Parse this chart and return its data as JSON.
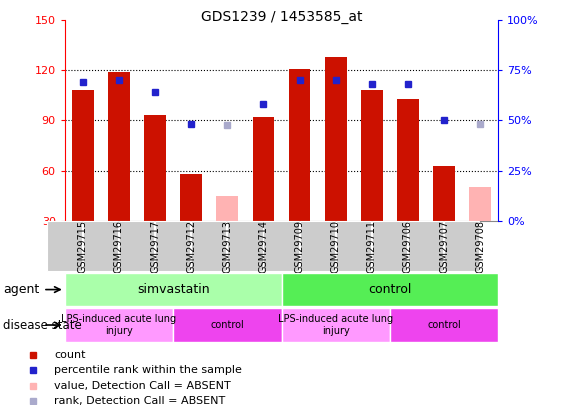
{
  "title": "GDS1239 / 1453585_at",
  "samples": [
    "GSM29715",
    "GSM29716",
    "GSM29717",
    "GSM29712",
    "GSM29713",
    "GSM29714",
    "GSM29709",
    "GSM29710",
    "GSM29711",
    "GSM29706",
    "GSM29707",
    "GSM29708"
  ],
  "count_values": [
    108,
    119,
    93,
    58,
    null,
    92,
    121,
    128,
    108,
    103,
    63,
    null
  ],
  "absent_value_values": [
    null,
    null,
    null,
    null,
    45,
    null,
    null,
    null,
    null,
    null,
    null,
    50
  ],
  "percentile_left_values": [
    113,
    114,
    107,
    88,
    null,
    100,
    114,
    114,
    112,
    112,
    90,
    null
  ],
  "absent_rank_left_values": [
    null,
    null,
    null,
    null,
    87,
    null,
    null,
    null,
    null,
    null,
    null,
    88
  ],
  "ylim_left": [
    30,
    150
  ],
  "ylim_right": [
    0,
    100
  ],
  "yticks_left": [
    30,
    60,
    90,
    120,
    150
  ],
  "yticks_right": [
    0,
    25,
    50,
    75,
    100
  ],
  "ytick_labels_right": [
    "0%",
    "25%",
    "50%",
    "75%",
    "100%"
  ],
  "bar_color_red": "#CC1100",
  "bar_color_pink": "#FFB3B3",
  "dot_color_blue": "#2222CC",
  "dot_color_lavender": "#AAAACC",
  "agent_groups": [
    {
      "label": "simvastatin",
      "start": 0,
      "end": 6,
      "color": "#AAFFAA"
    },
    {
      "label": "control",
      "start": 6,
      "end": 12,
      "color": "#55EE55"
    }
  ],
  "disease_groups": [
    {
      "label": "LPS-induced acute lung\ninjury",
      "start": 0,
      "end": 3,
      "color": "#FF99FF"
    },
    {
      "label": "control",
      "start": 3,
      "end": 6,
      "color": "#EE44EE"
    },
    {
      "label": "LPS-induced acute lung\ninjury",
      "start": 6,
      "end": 9,
      "color": "#FF99FF"
    },
    {
      "label": "control",
      "start": 9,
      "end": 12,
      "color": "#EE44EE"
    }
  ],
  "legend_items": [
    {
      "color": "#CC1100",
      "label": "count"
    },
    {
      "color": "#2222CC",
      "label": "percentile rank within the sample"
    },
    {
      "color": "#FFB3B3",
      "label": "value, Detection Call = ABSENT"
    },
    {
      "color": "#AAAACC",
      "label": "rank, Detection Call = ABSENT"
    }
  ]
}
